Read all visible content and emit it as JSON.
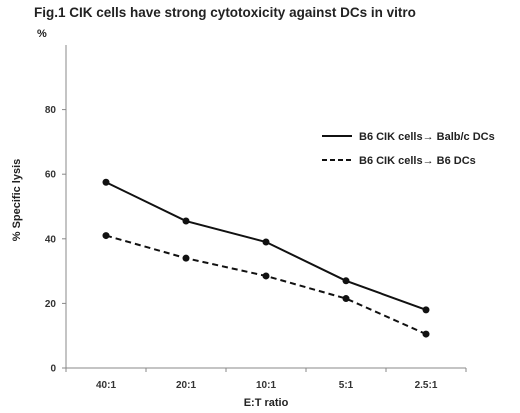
{
  "chart_data": {
    "type": "line",
    "title": "Fig.1 CIK cells have strong cytotoxicity against DCs in vitro",
    "xlabel": "E:T ratio",
    "ylabel": "% Specific lysis",
    "y_unit": "%",
    "categories": [
      "40:1",
      "20:1",
      "10:1",
      "5:1",
      "2.5:1"
    ],
    "ylim": [
      0,
      100
    ],
    "yticks": [
      0,
      20,
      40,
      60,
      80
    ],
    "grid": false,
    "legend_position": "right",
    "series": [
      {
        "name": "B6 CIK cells→ Balb/c DCs",
        "style": "solid",
        "values": [
          57.5,
          45.5,
          39,
          27,
          18
        ]
      },
      {
        "name": "B6 CIK cells→ B6 DCs",
        "style": "dashed",
        "values": [
          41,
          34,
          28.5,
          21.5,
          10.5
        ]
      }
    ],
    "colors": {
      "line": "#111111",
      "axis": "#888888"
    }
  }
}
